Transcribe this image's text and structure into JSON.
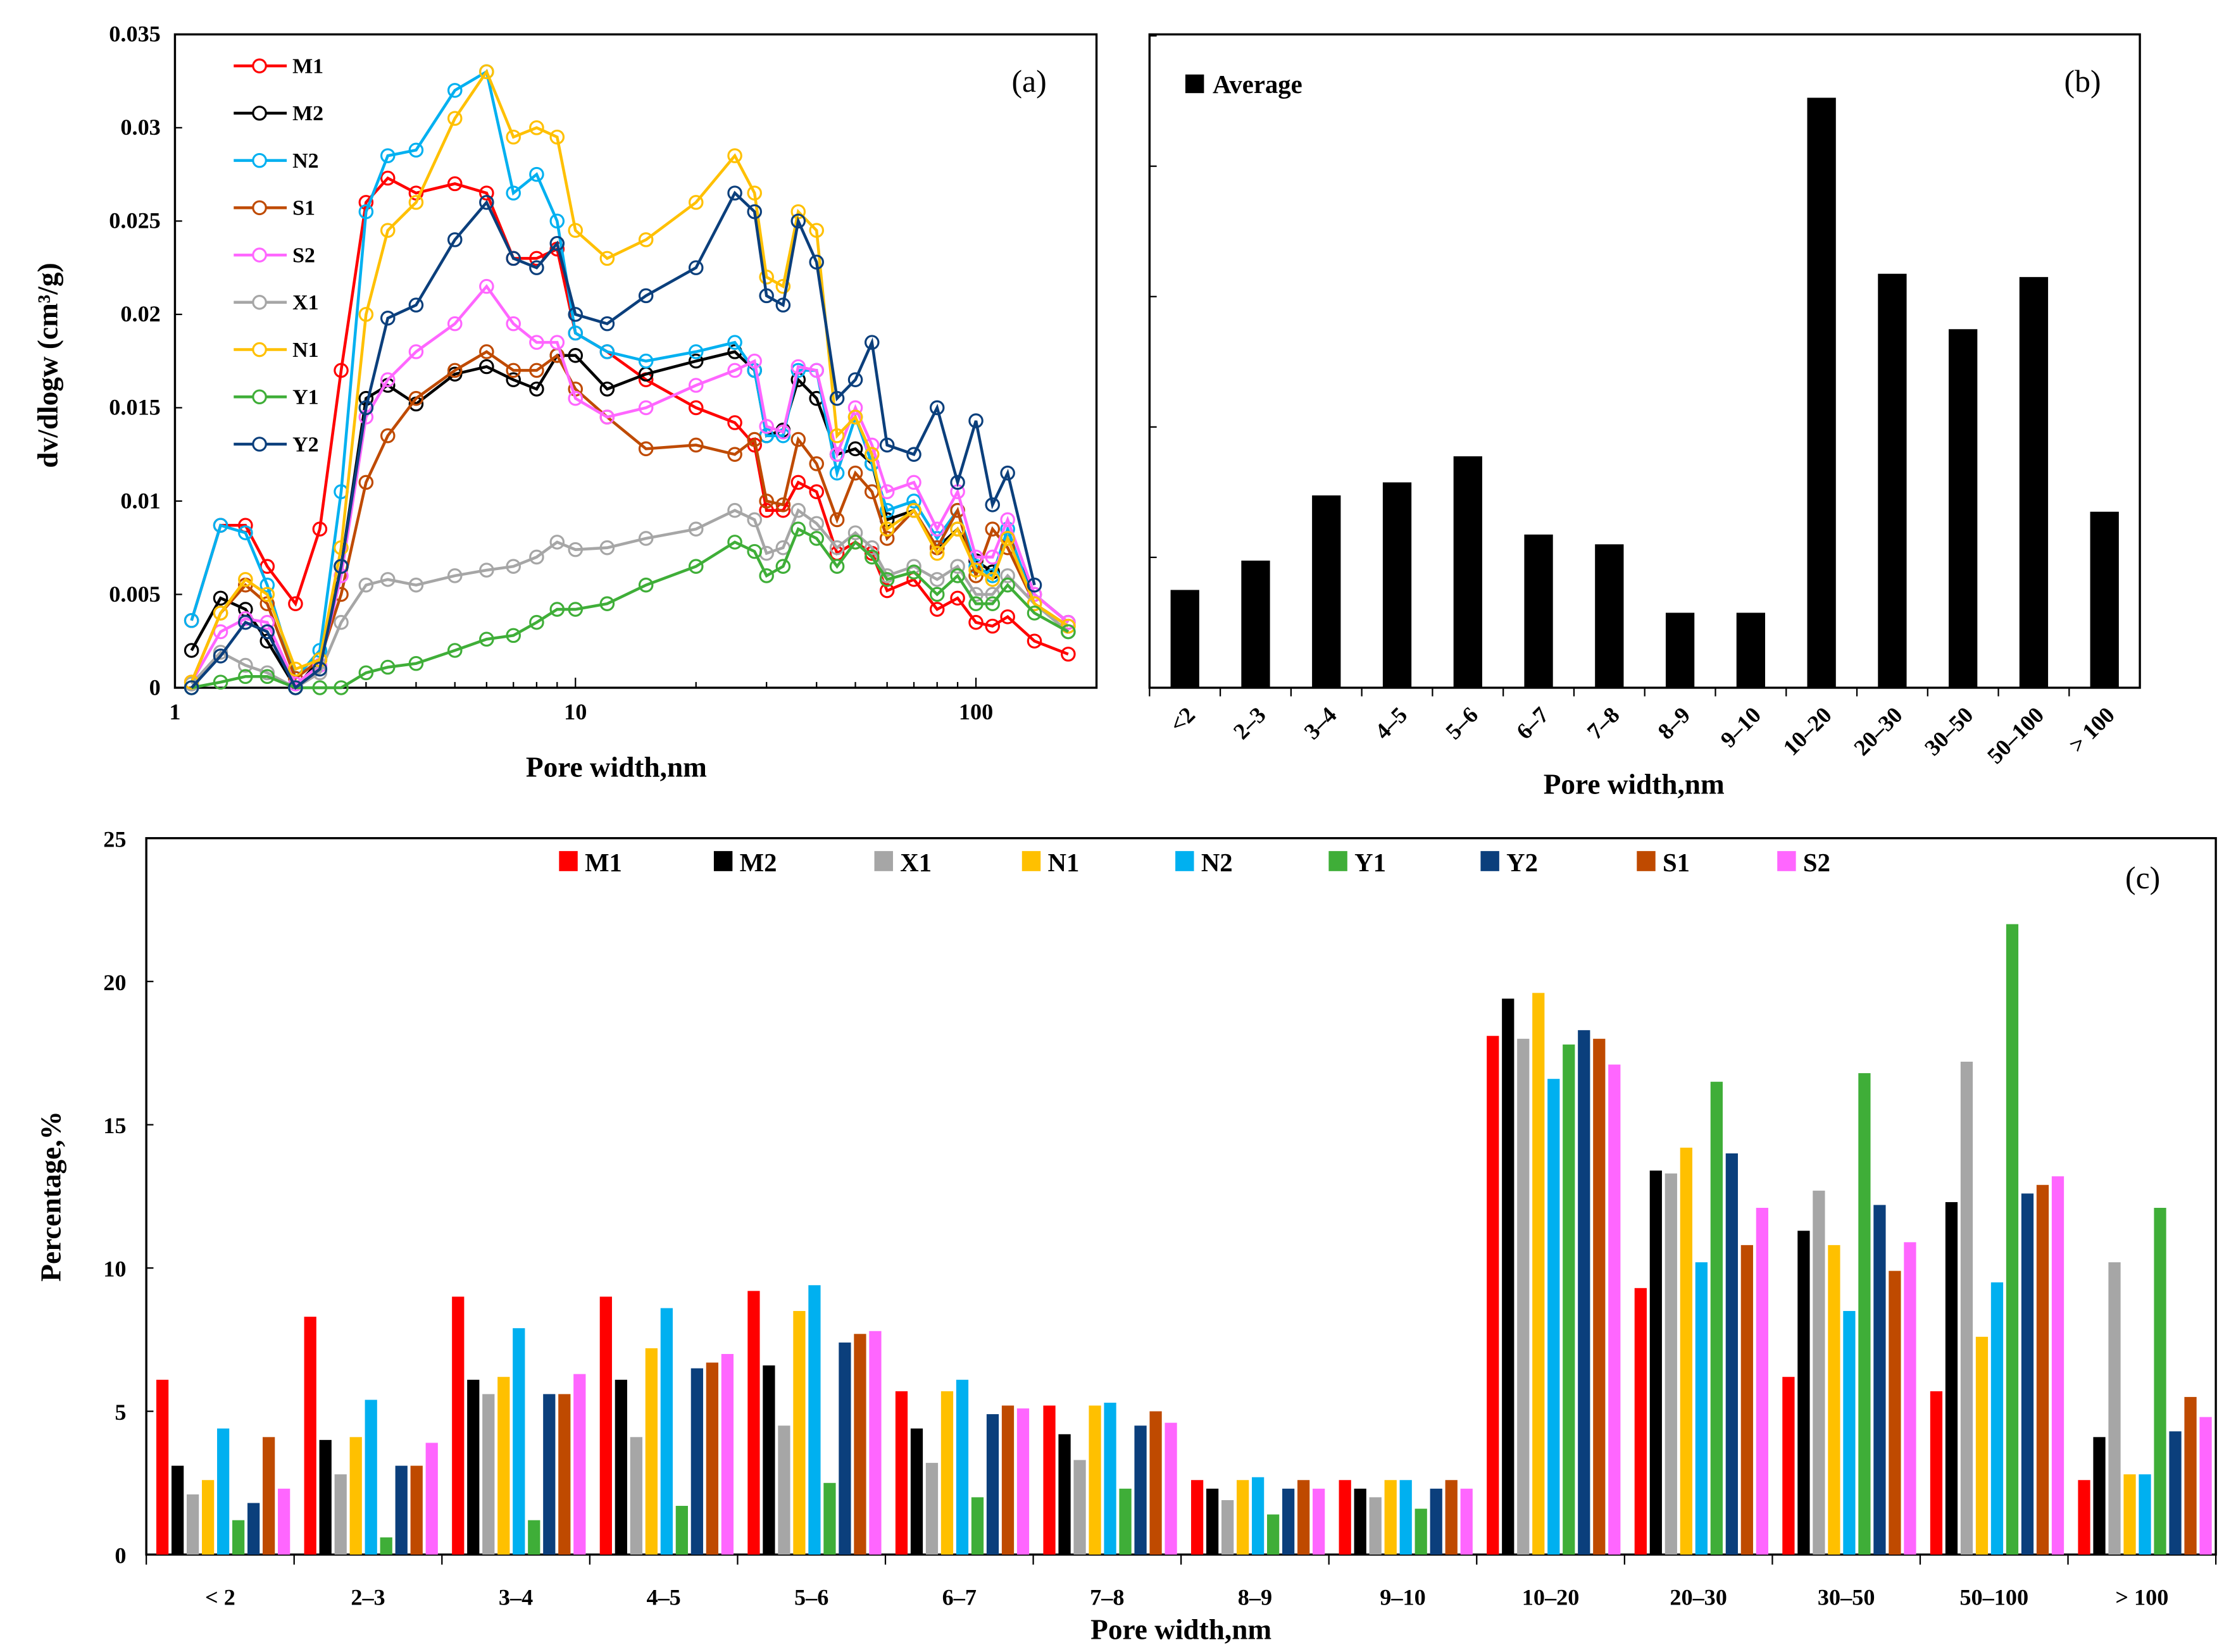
{
  "colors": {
    "M1": "#ff0000",
    "M2": "#000000",
    "X1": "#a6a6a6",
    "N1": "#ffc000",
    "N2": "#00b0f0",
    "Y1": "#3fae38",
    "Y2": "#0b3f7c",
    "S1": "#bf4a00",
    "S2": "#ff66ff",
    "Average": "#000000"
  },
  "chart_data": [
    {
      "panel": "(a)",
      "type": "line",
      "xlabel": "Pore width,nm",
      "ylabel": "dv/dlogw (cm³/g)",
      "xscale": "log",
      "xlim": [
        1,
        200
      ],
      "ylim": [
        0,
        0.035
      ],
      "xticks": [
        "1",
        "10",
        "100"
      ],
      "yticks": [
        "0",
        "0.005",
        "0.01",
        "0.015",
        "0.02",
        "0.025",
        "0.03",
        "0.035"
      ],
      "legend_position": "top-left",
      "x": [
        1.1,
        1.3,
        1.5,
        1.7,
        2.0,
        2.3,
        2.6,
        3.0,
        3.4,
        4,
        5,
        6,
        7,
        8,
        9,
        10,
        12,
        15,
        20,
        25,
        28,
        30,
        33,
        36,
        40,
        45,
        50,
        55,
        60,
        70,
        80,
        90,
        100,
        110,
        120,
        140,
        170
      ],
      "series": [
        {
          "name": "M1",
          "values": [
            0.0036,
            0.0087,
            0.0087,
            0.0065,
            0.0045,
            0.0085,
            0.017,
            0.026,
            0.0273,
            0.0265,
            0.027,
            0.0265,
            0.023,
            0.023,
            0.0235,
            0.019,
            0.018,
            0.0165,
            0.015,
            0.0142,
            0.013,
            0.0095,
            0.0095,
            0.011,
            0.0105,
            0.0072,
            0.0078,
            0.0072,
            0.0052,
            0.0058,
            0.0042,
            0.0048,
            0.0035,
            0.0033,
            0.0038,
            0.0025,
            0.0018
          ]
        },
        {
          "name": "M2",
          "values": [
            0.002,
            0.0048,
            0.0042,
            0.0025,
            0.0,
            0.0015,
            0.0065,
            0.0155,
            0.0162,
            0.0152,
            0.0168,
            0.0172,
            0.0165,
            0.016,
            0.0178,
            0.0178,
            0.016,
            0.0168,
            0.0175,
            0.018,
            0.017,
            0.0135,
            0.0138,
            0.0165,
            0.0155,
            0.0125,
            0.0128,
            0.012,
            0.009,
            0.0095,
            0.0075,
            0.0085,
            0.0068,
            0.0062,
            0.008,
            0.005,
            0.0035
          ]
        },
        {
          "name": "N2",
          "values": [
            0.0036,
            0.0087,
            0.0083,
            0.0055,
            0.0005,
            0.002,
            0.0105,
            0.0255,
            0.0285,
            0.0288,
            0.032,
            0.033,
            0.0265,
            0.0275,
            0.025,
            0.019,
            0.018,
            0.0175,
            0.018,
            0.0185,
            0.017,
            0.0135,
            0.0135,
            0.017,
            0.017,
            0.0115,
            0.0145,
            0.012,
            0.0095,
            0.01,
            0.008,
            0.0095,
            0.0065,
            0.006,
            0.0085,
            0.0045,
            0.003
          ]
        },
        {
          "name": "S1",
          "values": [
            0.0003,
            0.004,
            0.0055,
            0.0045,
            0.0005,
            0.0015,
            0.005,
            0.011,
            0.0135,
            0.0155,
            0.017,
            0.018,
            0.017,
            0.017,
            0.0178,
            0.016,
            0.0145,
            0.0128,
            0.013,
            0.0125,
            0.0133,
            0.01,
            0.0098,
            0.0133,
            0.012,
            0.009,
            0.0115,
            0.0105,
            0.008,
            0.0095,
            0.0075,
            0.0095,
            0.006,
            0.0085,
            0.0075,
            0.0045,
            0.0033
          ]
        },
        {
          "name": "S2",
          "values": [
            0.0003,
            0.003,
            0.0037,
            0.0035,
            0.0002,
            0.0012,
            0.006,
            0.0145,
            0.0165,
            0.018,
            0.0195,
            0.0215,
            0.0195,
            0.0185,
            0.0185,
            0.0155,
            0.0145,
            0.015,
            0.0162,
            0.017,
            0.0175,
            0.014,
            0.0137,
            0.0172,
            0.017,
            0.0125,
            0.015,
            0.013,
            0.0105,
            0.011,
            0.0085,
            0.0105,
            0.007,
            0.007,
            0.009,
            0.005,
            0.0035
          ]
        },
        {
          "name": "X1",
          "values": [
            0.0002,
            0.0019,
            0.0012,
            0.0008,
            0.0,
            0.0008,
            0.0035,
            0.0055,
            0.0058,
            0.0055,
            0.006,
            0.0063,
            0.0065,
            0.007,
            0.0078,
            0.0074,
            0.0075,
            0.008,
            0.0085,
            0.0095,
            0.009,
            0.0072,
            0.0075,
            0.0095,
            0.0088,
            0.0075,
            0.0083,
            0.0075,
            0.006,
            0.0065,
            0.0058,
            0.0065,
            0.005,
            0.005,
            0.006,
            0.0045,
            0.003
          ]
        },
        {
          "name": "N1",
          "values": [
            0.0003,
            0.004,
            0.0058,
            0.005,
            0.001,
            0.0015,
            0.0075,
            0.02,
            0.0245,
            0.026,
            0.0305,
            0.033,
            0.0295,
            0.03,
            0.0295,
            0.0245,
            0.023,
            0.024,
            0.026,
            0.0285,
            0.0265,
            0.022,
            0.0215,
            0.0255,
            0.0245,
            0.0135,
            0.0145,
            0.0125,
            0.0085,
            0.0095,
            0.0072,
            0.0085,
            0.0063,
            0.0058,
            0.008,
            0.0045,
            0.0033
          ]
        },
        {
          "name": "Y1",
          "values": [
            0.0,
            0.0003,
            0.0006,
            0.0006,
            0.0,
            0.0,
            0.0,
            0.0008,
            0.0011,
            0.0013,
            0.002,
            0.0026,
            0.0028,
            0.0035,
            0.0042,
            0.0042,
            0.0045,
            0.0055,
            0.0065,
            0.0078,
            0.0073,
            0.006,
            0.0065,
            0.0085,
            0.008,
            0.0065,
            0.0078,
            0.007,
            0.0058,
            0.0062,
            0.005,
            0.006,
            0.0045,
            0.0045,
            0.0055,
            0.004,
            0.003
          ]
        },
        {
          "name": "Y2",
          "values": [
            0.0,
            0.0017,
            0.0035,
            0.003,
            0.0,
            0.001,
            0.0065,
            0.015,
            0.0198,
            0.0205,
            0.024,
            0.026,
            0.023,
            0.0225,
            0.0238,
            0.02,
            0.0195,
            0.021,
            0.0225,
            0.0265,
            0.0255,
            0.021,
            0.0205,
            0.025,
            0.0228,
            0.0155,
            0.0165,
            0.0185,
            0.013,
            0.0125,
            0.015,
            0.011,
            0.0143,
            0.0098,
            0.0115,
            0.0055,
            null
          ]
        }
      ]
    },
    {
      "panel": "(b)",
      "type": "bar",
      "xlabel": "Pore width,nm",
      "ylabel": "",
      "ylim": [
        0,
        20
      ],
      "ytick_step": 4,
      "legend": [
        "Average"
      ],
      "legend_position": "top-left",
      "categories": [
        "<2",
        "2–3",
        "3–4",
        "4–5",
        "5–6",
        "6–7",
        "7–8",
        "8–9",
        "9–10",
        "10–20",
        "20–30",
        "30–50",
        "50–100",
        "> 100"
      ],
      "series": [
        {
          "name": "Average",
          "values": [
            3.0,
            3.9,
            5.9,
            6.3,
            7.1,
            4.7,
            4.4,
            2.3,
            2.3,
            18.1,
            12.7,
            11.0,
            12.6,
            5.4
          ]
        }
      ]
    },
    {
      "panel": "(c)",
      "type": "bar",
      "xlabel": "Pore width,nm",
      "ylabel": "Percentage,%",
      "ylim": [
        0,
        25
      ],
      "yticks": [
        "0",
        "5",
        "10",
        "15",
        "20",
        "25"
      ],
      "legend_position": "top",
      "categories": [
        "< 2",
        "2–3",
        "3–4",
        "4–5",
        "5–6",
        "6–7",
        "7–8",
        "8–9",
        "9–10",
        "10–20",
        "20–30",
        "30–50",
        "50–100",
        "> 100"
      ],
      "series": [
        {
          "name": "M1",
          "values": [
            6.1,
            8.3,
            9.0,
            9.0,
            9.2,
            5.7,
            5.2,
            2.6,
            2.6,
            18.1,
            9.3,
            6.2,
            5.7,
            2.6
          ]
        },
        {
          "name": "M2",
          "values": [
            3.1,
            4.0,
            6.1,
            6.1,
            6.6,
            4.4,
            4.2,
            2.3,
            2.3,
            19.4,
            13.4,
            11.3,
            12.3,
            4.1
          ]
        },
        {
          "name": "X1",
          "values": [
            2.1,
            2.8,
            5.6,
            4.1,
            4.5,
            3.2,
            3.3,
            1.9,
            2.0,
            18.0,
            13.3,
            12.7,
            17.2,
            10.2
          ]
        },
        {
          "name": "N1",
          "values": [
            2.6,
            4.1,
            6.2,
            7.2,
            8.5,
            5.7,
            5.2,
            2.6,
            2.6,
            19.6,
            14.2,
            10.8,
            7.6,
            2.8
          ]
        },
        {
          "name": "N2",
          "values": [
            4.4,
            5.4,
            7.9,
            8.6,
            9.4,
            6.1,
            5.3,
            2.7,
            2.6,
            16.6,
            10.2,
            8.5,
            9.5,
            2.8
          ]
        },
        {
          "name": "Y1",
          "values": [
            1.2,
            0.6,
            1.2,
            1.7,
            2.5,
            2.0,
            2.3,
            1.4,
            1.6,
            17.8,
            16.5,
            16.8,
            22.0,
            12.1
          ]
        },
        {
          "name": "Y2",
          "values": [
            1.8,
            3.1,
            5.6,
            6.5,
            7.4,
            4.9,
            4.5,
            2.3,
            2.3,
            18.3,
            14.0,
            12.2,
            12.6,
            4.3
          ]
        },
        {
          "name": "S1",
          "values": [
            4.1,
            3.1,
            5.6,
            6.7,
            7.7,
            5.2,
            5.0,
            2.6,
            2.6,
            18.0,
            10.8,
            9.9,
            12.9,
            5.5
          ]
        },
        {
          "name": "S2",
          "values": [
            2.3,
            3.9,
            6.3,
            7.0,
            7.8,
            5.1,
            4.6,
            2.3,
            2.3,
            17.1,
            12.1,
            10.9,
            13.2,
            4.8
          ]
        }
      ]
    }
  ]
}
